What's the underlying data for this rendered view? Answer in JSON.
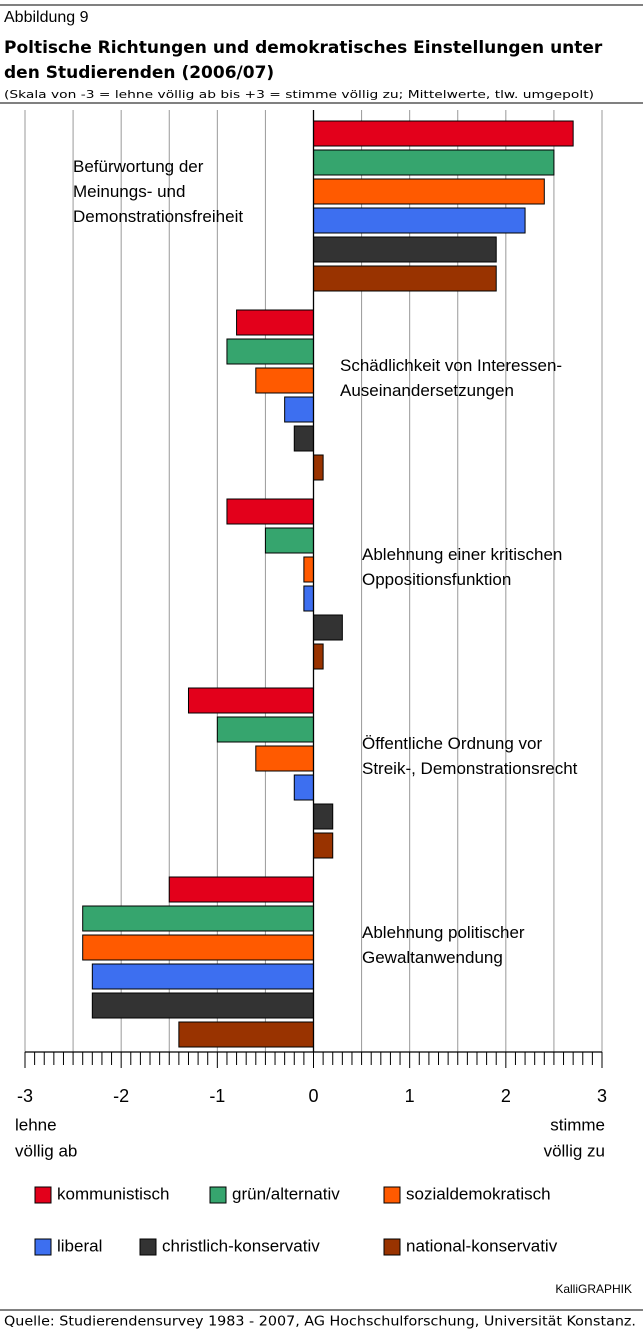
{
  "chart_data": {
    "type": "barh",
    "label": "Abbildung 9",
    "title": [
      "Poltische Richtungen und demokratisches Einstellungen unter",
      "den Studierenden (2006/07)"
    ],
    "subtitle": "(Skala von -3 = lehne völlig ab bis +3 = stimme völlig zu; Mittelwerte, tlw. umgepolt)",
    "categories": [
      [
        "Befürwortung der",
        "Meinungs- und",
        "Demonstrationsfreiheit"
      ],
      [
        "Schädlichkeit von Interessen-",
        "Auseinandersetzungen"
      ],
      [
        "Ablehnung einer kritischen",
        "Oppositionsfunktion"
      ],
      [
        "Öffentliche Ordnung vor",
        "Streik-, Demonstrationsrecht"
      ],
      [
        "Ablehnung politischer",
        "Gewaltanwendung"
      ]
    ],
    "series": [
      {
        "name": "kommunistisch",
        "color": "#e3001b",
        "values": [
          2.7,
          -0.8,
          -0.9,
          -1.3,
          -1.5
        ]
      },
      {
        "name": "grün/alternativ",
        "color": "#36a56e",
        "values": [
          2.5,
          -0.9,
          -0.5,
          -1.0,
          -2.4
        ]
      },
      {
        "name": "sozialdemokratisch",
        "color": "#ff5a00",
        "values": [
          2.4,
          -0.6,
          -0.1,
          -0.6,
          -2.4
        ]
      },
      {
        "name": "liberal",
        "color": "#3d6ff0",
        "values": [
          2.2,
          -0.3,
          -0.1,
          -0.2,
          -2.3
        ]
      },
      {
        "name": "christlich-konservativ",
        "color": "#333333",
        "values": [
          1.9,
          -0.2,
          0.3,
          0.2,
          -2.3
        ]
      },
      {
        "name": "national-konservativ",
        "color": "#993300",
        "values": [
          1.9,
          0.1,
          0.1,
          0.2,
          -1.4
        ]
      }
    ],
    "xlim": [
      -3,
      3
    ],
    "xticks": [
      -3,
      -2,
      -1,
      0,
      1,
      2,
      3
    ],
    "grid": true,
    "left_label": [
      "lehne",
      "völlig ab"
    ],
    "right_label": [
      "stimme",
      "völlig zu"
    ],
    "credit": "KalliGRAPHIK",
    "source": "Quelle: Studierendensurvey 1983 - 2007, AG Hochschulforschung, Universität Konstanz."
  }
}
